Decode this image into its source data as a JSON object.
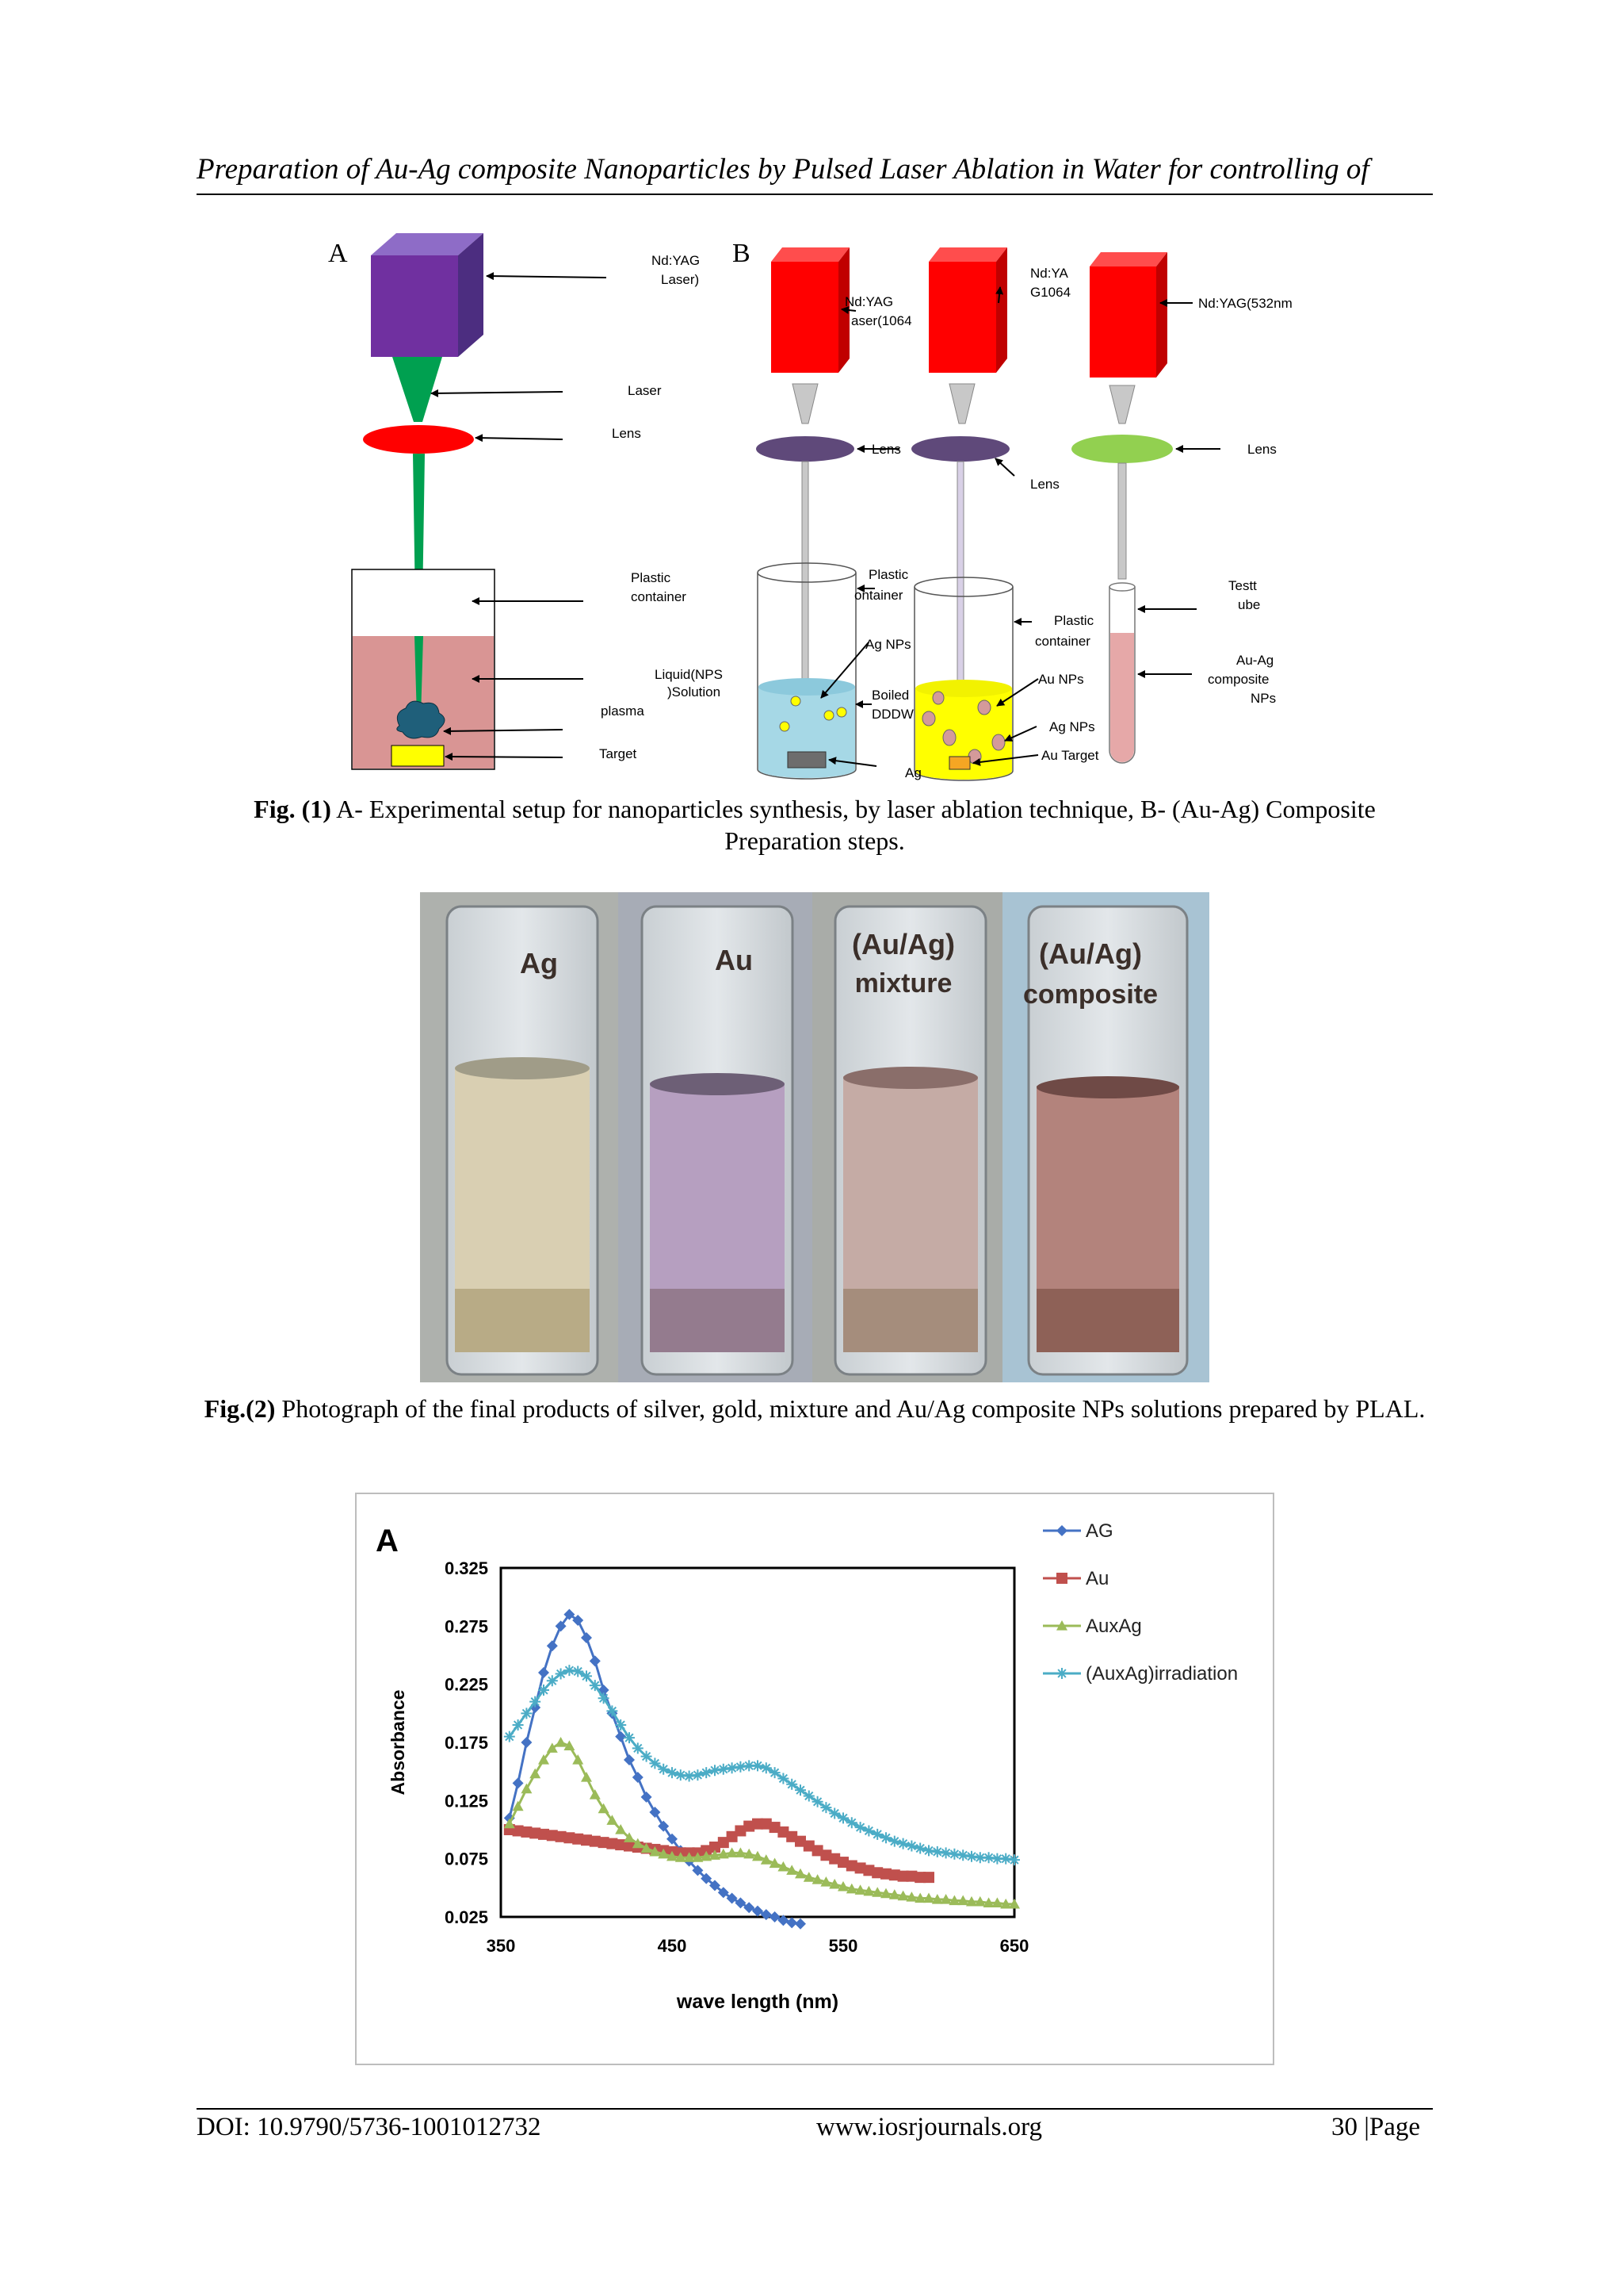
{
  "header": {
    "running_title": "Preparation of Au-Ag composite Nanoparticles by Pulsed Laser Ablation in Water for controlling of"
  },
  "figure1": {
    "panel_a": {
      "letter": "A",
      "labels": {
        "laser_source_1": "Nd:YAG",
        "laser_source_2": "Laser)",
        "laser": "Laser",
        "lens": "Lens",
        "container_1": "Plastic",
        "container_2": "container",
        "liquid_1": "Liquid(NPS",
        "liquid_2": ")Solution",
        "plasma": "plasma",
        "target": "Target"
      }
    },
    "panel_b": {
      "letter": "B",
      "labels": {
        "laser1_a": "Nd:YAG",
        "laser1_b": "aser(1064",
        "laser2_a": "Nd:YA",
        "laser2_b": "G1064",
        "laser3": "Nd:YAG(532nm",
        "lens1": "Lens",
        "lens2": "Lens",
        "lens3": "Lens",
        "plastic1_a": "Plastic",
        "plastic1_b": "ontainer",
        "ag_nps_1": "Ag NPs",
        "boiled_a": "Boiled",
        "boiled_b": "DDDW",
        "ag_target": "Ag",
        "plastic2_a": "Plastic",
        "plastic2_b": "container",
        "au_nps": "Au NPs",
        "ag_nps_2": "Ag NPs",
        "au_target": "Au Target",
        "testtube_a": "Testt",
        "testtube_b": "ube",
        "composite_a": "Au-Ag",
        "composite_b": "composite",
        "composite_c": "NPs"
      }
    },
    "caption": {
      "label": "Fig. (1)",
      "text": " A- Experimental setup for nanoparticles synthesis, by laser ablation technique, B- (Au-Ag) Composite Preparation steps."
    }
  },
  "figure2": {
    "vials": [
      {
        "line1": "Ag",
        "line2": ""
      },
      {
        "line1": "Au",
        "line2": ""
      },
      {
        "line1": "(Au/Ag)",
        "line2": "mixture"
      },
      {
        "line1": "(Au/Ag)",
        "line2": "composite"
      }
    ],
    "caption": {
      "label": "Fig.(2)",
      "text": " Photograph of the final products of silver, gold, mixture and Au/Ag composite NPs solutions prepared by PLAL."
    }
  },
  "chart_data": {
    "type": "line",
    "title": "",
    "panel_letter": "A",
    "xlabel": "wave length (nm)",
    "ylabel": "Absorbance",
    "xlim": [
      350,
      650
    ],
    "ylim": [
      0.025,
      0.325
    ],
    "xticks": [
      350,
      450,
      550,
      650
    ],
    "xtick_labels": [
      "350",
      "450",
      "550",
      "650"
    ],
    "yticks": [
      0.025,
      0.075,
      0.125,
      0.175,
      0.225,
      0.275,
      0.325
    ],
    "ytick_labels": [
      "0.025",
      "0.075",
      "0.125",
      "0.175",
      "0.225",
      "0.275",
      "0.325"
    ],
    "grid": false,
    "legend": "right",
    "series": [
      {
        "name": "AG",
        "color": "#4472c4",
        "marker": "diamond",
        "x_start": 355,
        "x_step": 5,
        "y": [
          0.11,
          0.14,
          0.175,
          0.205,
          0.235,
          0.258,
          0.275,
          0.285,
          0.28,
          0.265,
          0.245,
          0.22,
          0.2,
          0.18,
          0.16,
          0.145,
          0.128,
          0.115,
          0.103,
          0.092,
          0.082,
          0.073,
          0.065,
          0.058,
          0.052,
          0.046,
          0.041,
          0.037,
          0.033,
          0.03,
          0.027,
          0.025,
          0.022,
          0.02,
          0.019
        ]
      },
      {
        "name": "Au",
        "color": "#c0504d",
        "marker": "square",
        "x_start": 355,
        "x_step": 5,
        "y": [
          0.1,
          0.099,
          0.098,
          0.097,
          0.096,
          0.095,
          0.094,
          0.093,
          0.092,
          0.091,
          0.09,
          0.089,
          0.088,
          0.087,
          0.086,
          0.085,
          0.084,
          0.083,
          0.082,
          0.081,
          0.08,
          0.08,
          0.08,
          0.082,
          0.085,
          0.089,
          0.094,
          0.099,
          0.103,
          0.105,
          0.105,
          0.102,
          0.098,
          0.094,
          0.09,
          0.086,
          0.082,
          0.078,
          0.075,
          0.072,
          0.069,
          0.067,
          0.065,
          0.063,
          0.062,
          0.061,
          0.06,
          0.06,
          0.059,
          0.059
        ]
      },
      {
        "name": "AuxAg",
        "color": "#9bbb59",
        "marker": "triangle",
        "x_start": 355,
        "x_step": 5,
        "y": [
          0.105,
          0.12,
          0.135,
          0.148,
          0.16,
          0.17,
          0.175,
          0.172,
          0.16,
          0.145,
          0.13,
          0.118,
          0.108,
          0.1,
          0.093,
          0.088,
          0.084,
          0.081,
          0.079,
          0.077,
          0.076,
          0.076,
          0.076,
          0.077,
          0.078,
          0.079,
          0.08,
          0.08,
          0.079,
          0.077,
          0.074,
          0.071,
          0.068,
          0.065,
          0.062,
          0.059,
          0.057,
          0.055,
          0.053,
          0.051,
          0.049,
          0.048,
          0.047,
          0.046,
          0.045,
          0.044,
          0.043,
          0.042,
          0.041,
          0.041,
          0.04,
          0.04,
          0.039,
          0.039,
          0.038,
          0.038,
          0.037,
          0.037,
          0.036,
          0.036
        ]
      },
      {
        "name": "(AuxAg)irradiation",
        "color": "#4bacc6",
        "marker": "asterisk",
        "x_start": 355,
        "x_step": 5,
        "y": [
          0.18,
          0.19,
          0.2,
          0.21,
          0.22,
          0.228,
          0.234,
          0.237,
          0.236,
          0.232,
          0.224,
          0.213,
          0.202,
          0.19,
          0.179,
          0.17,
          0.163,
          0.157,
          0.152,
          0.149,
          0.147,
          0.146,
          0.147,
          0.149,
          0.151,
          0.152,
          0.153,
          0.154,
          0.155,
          0.155,
          0.153,
          0.149,
          0.144,
          0.139,
          0.134,
          0.129,
          0.124,
          0.119,
          0.114,
          0.11,
          0.106,
          0.102,
          0.099,
          0.096,
          0.093,
          0.09,
          0.088,
          0.086,
          0.084,
          0.082,
          0.081,
          0.08,
          0.079,
          0.078,
          0.077,
          0.076,
          0.076,
          0.075,
          0.075,
          0.074
        ]
      }
    ]
  },
  "footer": {
    "doi": "DOI: 10.9790/5736-1001012732",
    "website": "www.iosrjournals.org",
    "page": "30 |Page"
  }
}
